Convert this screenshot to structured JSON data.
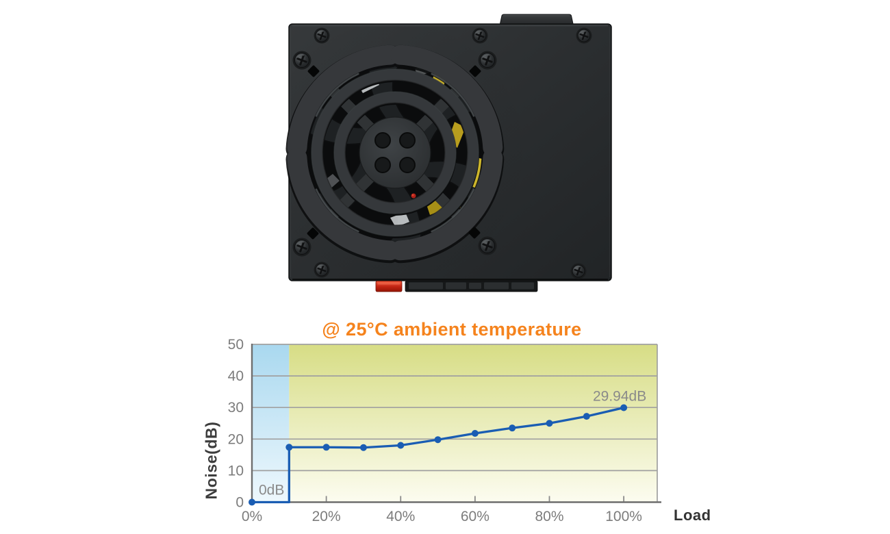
{
  "product_image": {
    "kind": "psu-top-view-photo",
    "accent_colors": {
      "switch_red": "#cf2413",
      "internals_yellow": "#c7b02a",
      "case_gray": "#2c2f31"
    }
  },
  "chart_data": {
    "type": "line",
    "title": "@ 25°C ambient temperature",
    "title_color": "#f5831d",
    "xlabel": "Load",
    "ylabel": "Noise(dB)",
    "x": [
      0,
      10,
      20,
      30,
      40,
      50,
      60,
      70,
      80,
      90,
      100
    ],
    "values": [
      0,
      17.4,
      17.4,
      17.3,
      18.0,
      19.8,
      21.8,
      23.5,
      25.0,
      27.2,
      29.94
    ],
    "step_at_x": 10,
    "xlim": [
      0,
      109
    ],
    "ylim": [
      0,
      50
    ],
    "xticks": [
      0,
      20,
      40,
      60,
      80,
      100
    ],
    "xtick_labels": [
      "0%",
      "20%",
      "40%",
      "60%",
      "80%",
      "100%"
    ],
    "yticks": [
      0,
      10,
      20,
      30,
      40,
      50
    ],
    "ytick_labels": [
      "0",
      "10",
      "20",
      "30",
      "40",
      "50"
    ],
    "grid": true,
    "legend": "none",
    "line_color": "#1a5db3",
    "marker": "circle",
    "annotations": {
      "zero_label": "0dB",
      "max_label": "29.94dB"
    },
    "regions": [
      {
        "from_x": 0,
        "to_x": 10,
        "color_top": "#a9d8ef",
        "color_bottom": "#eef8fd"
      },
      {
        "from_x": 10,
        "to_x": 109,
        "color_top": "#d7dd85",
        "color_bottom": "#fcfcf0"
      }
    ]
  }
}
